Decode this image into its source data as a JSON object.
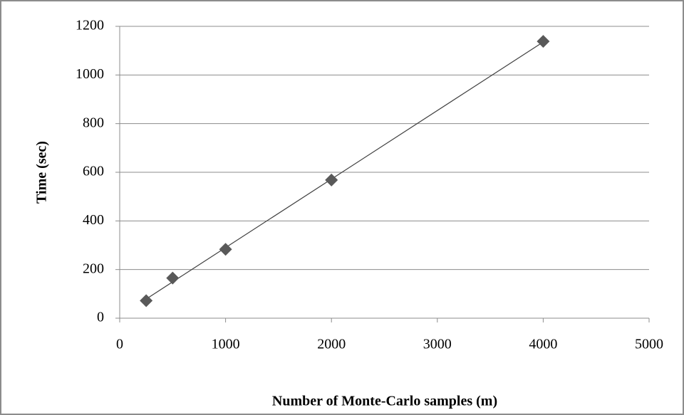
{
  "chart_data": {
    "type": "scatter",
    "x_label": "Number of Monte-Carlo samples (m)",
    "y_label": "Time (sec)",
    "x": [
      250,
      500,
      1000,
      2000,
      4000
    ],
    "values": [
      72,
      165,
      283,
      568,
      1138
    ],
    "color": "#595959",
    "trendline": "linear",
    "xlim": [
      0,
      5000
    ],
    "xticks": [
      0,
      1000,
      2000,
      3000,
      4000,
      5000
    ],
    "ylim": [
      0,
      1200
    ],
    "yticks": [
      0,
      200,
      400,
      600,
      800,
      1000,
      1200
    ],
    "grid": true
  }
}
